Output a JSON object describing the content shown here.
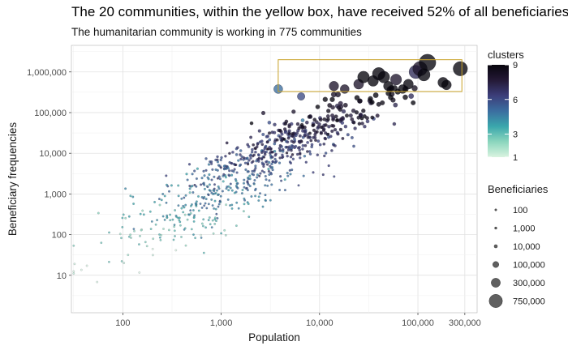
{
  "chart_data": {
    "type": "scatter",
    "title": "The 20 communities, within the yellow box, have received 52% of all beneficiaries",
    "subtitle": "The humanitarian community is working in 775 communities",
    "xlabel": "Population",
    "ylabel": "Beneficiary frequencies",
    "x_scale": "log",
    "y_scale": "log",
    "xlim": [
      30,
      400000
    ],
    "ylim": [
      1.2,
      4500000
    ],
    "x_ticks": [
      {
        "value": 100,
        "label": "100"
      },
      {
        "value": 1000,
        "label": "1,000"
      },
      {
        "value": 10000,
        "label": "10,000"
      },
      {
        "value": 100000,
        "label": "100,000"
      },
      {
        "value": 300000,
        "label": "300,000"
      }
    ],
    "y_ticks": [
      {
        "value": 10,
        "label": "10"
      },
      {
        "value": 100,
        "label": "100"
      },
      {
        "value": 1000,
        "label": "1,000"
      },
      {
        "value": 10000,
        "label": "10,000"
      },
      {
        "value": 100000,
        "label": "100,000"
      },
      {
        "value": 1000000,
        "label": "1,000,000"
      }
    ],
    "grid": true,
    "highlight_box": {
      "color": "#C9A227",
      "x": [
        3800,
        280000
      ],
      "y": [
        330000,
        2000000
      ]
    },
    "color_legend": {
      "title": "clusters",
      "range": [
        1,
        9
      ],
      "ticks": [
        {
          "value": 9,
          "label": "9"
        },
        {
          "value": 6,
          "label": "6"
        },
        {
          "value": 3,
          "label": "3"
        },
        {
          "value": 1,
          "label": "1"
        }
      ],
      "colors": [
        "#d9f3e0",
        "#8bd6bd",
        "#3aa7ac",
        "#3b6ea0",
        "#3c3e7a",
        "#241936",
        "#07050d"
      ]
    },
    "size_legend": {
      "title": "Beneficiaries",
      "entries": [
        {
          "value": 100,
          "label": "100"
        },
        {
          "value": 1000,
          "label": "1,000"
        },
        {
          "value": 10000,
          "label": "10,000"
        },
        {
          "value": 100000,
          "label": "100,000"
        },
        {
          "value": 300000,
          "label": "300,000"
        },
        {
          "value": 750000,
          "label": "750,000"
        }
      ]
    },
    "highlighted_points": [
      {
        "x": 3800,
        "y": 380000,
        "c": 5
      },
      {
        "x": 6500,
        "y": 250000,
        "c": 6
      },
      {
        "x": 14000,
        "y": 450000,
        "c": 8
      },
      {
        "x": 18000,
        "y": 380000,
        "c": 8
      },
      {
        "x": 25000,
        "y": 500000,
        "c": 8
      },
      {
        "x": 28000,
        "y": 750000,
        "c": 9
      },
      {
        "x": 35000,
        "y": 600000,
        "c": 9
      },
      {
        "x": 40000,
        "y": 900000,
        "c": 9
      },
      {
        "x": 45000,
        "y": 750000,
        "c": 9
      },
      {
        "x": 50000,
        "y": 450000,
        "c": 9
      },
      {
        "x": 60000,
        "y": 650000,
        "c": 8
      },
      {
        "x": 70000,
        "y": 380000,
        "c": 9
      },
      {
        "x": 80000,
        "y": 500000,
        "c": 9
      },
      {
        "x": 95000,
        "y": 1000000,
        "c": 7
      },
      {
        "x": 105000,
        "y": 1200000,
        "c": 8
      },
      {
        "x": 115000,
        "y": 850000,
        "c": 9
      },
      {
        "x": 125000,
        "y": 1700000,
        "c": 9
      },
      {
        "x": 180000,
        "y": 550000,
        "c": 9
      },
      {
        "x": 195000,
        "y": 480000,
        "c": 9
      },
      {
        "x": 270000,
        "y": 1200000,
        "c": 9
      }
    ],
    "cloud": [
      {
        "x_center": 800,
        "y_center": 650,
        "x_spread": 0.55,
        "y_spread": 0.7,
        "n": 300
      },
      {
        "x_center": 2500,
        "y_center": 8000,
        "x_spread": 0.4,
        "y_spread": 0.5,
        "n": 250
      },
      {
        "x_center": 10000,
        "y_center": 40000,
        "x_spread": 0.45,
        "y_spread": 0.45,
        "n": 205
      }
    ]
  }
}
